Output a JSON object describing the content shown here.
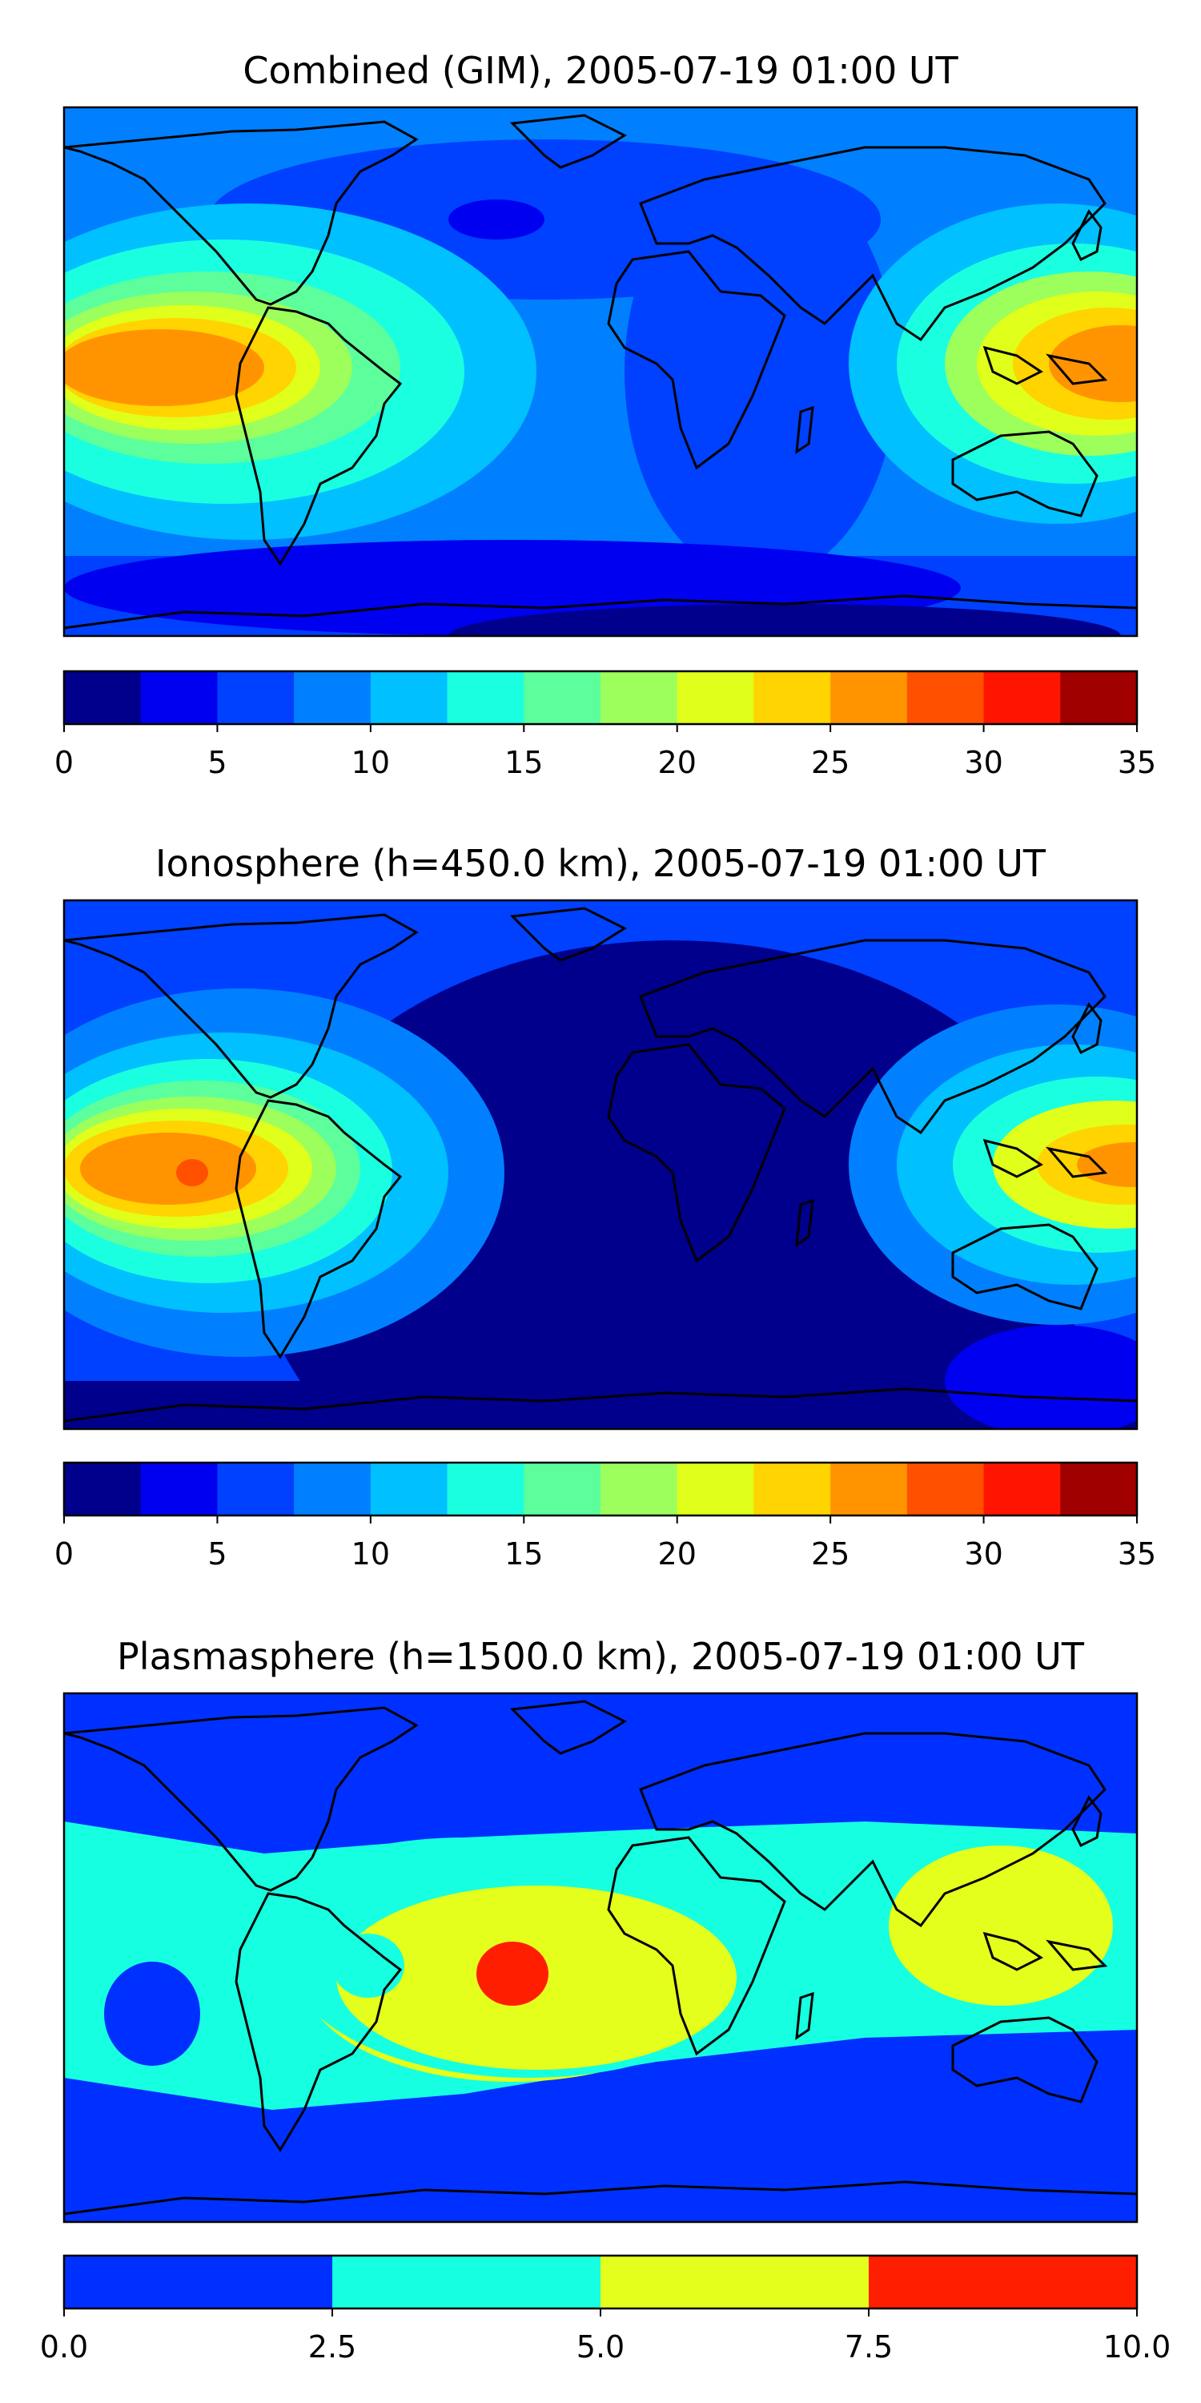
{
  "chart_data": [
    {
      "type": "heatmap",
      "title": "Combined (GIM), 2005-07-19 01:00 UT",
      "colorbar": {
        "levels": [
          0,
          2.5,
          5,
          7.5,
          10,
          12.5,
          15,
          17.5,
          20,
          22.5,
          25,
          27.5,
          30,
          32.5,
          35
        ],
        "colors": [
          "#00008c",
          "#0000f0",
          "#0040ff",
          "#0080ff",
          "#00c0ff",
          "#1affe0",
          "#5cff9c",
          "#9cff5c",
          "#e0ff1a",
          "#ffd400",
          "#ff9400",
          "#ff5000",
          "#ff1400",
          "#a00000"
        ],
        "ticks": [
          "0",
          "5",
          "10",
          "15",
          "20",
          "25",
          "30",
          "35"
        ],
        "range": [
          0,
          35
        ]
      },
      "grid": false
    },
    {
      "type": "heatmap",
      "title": "Ionosphere  (h=450.0 km), 2005-07-19 01:00 UT",
      "colorbar": {
        "levels": [
          0,
          2.5,
          5,
          7.5,
          10,
          12.5,
          15,
          17.5,
          20,
          22.5,
          25,
          27.5,
          30,
          32.5,
          35
        ],
        "colors": [
          "#00008c",
          "#0000f0",
          "#0040ff",
          "#0080ff",
          "#00c0ff",
          "#1affe0",
          "#5cff9c",
          "#9cff5c",
          "#e0ff1a",
          "#ffd400",
          "#ff9400",
          "#ff5000",
          "#ff1400",
          "#a00000"
        ],
        "ticks": [
          "0",
          "5",
          "10",
          "15",
          "20",
          "25",
          "30",
          "35"
        ],
        "range": [
          0,
          35
        ]
      },
      "grid": false
    },
    {
      "type": "heatmap",
      "title": "Plasmasphere (h=1500.0 km), 2005-07-19 01:00 UT",
      "colorbar": {
        "levels": [
          0,
          2.5,
          5,
          7.5,
          10
        ],
        "colors": [
          "#0030ff",
          "#16ffe0",
          "#e4ff1c",
          "#ff1e00"
        ],
        "ticks": [
          "0.0",
          "2.5",
          "5.0",
          "7.5",
          "10.0"
        ],
        "range": [
          0,
          10
        ]
      },
      "grid": false
    }
  ]
}
